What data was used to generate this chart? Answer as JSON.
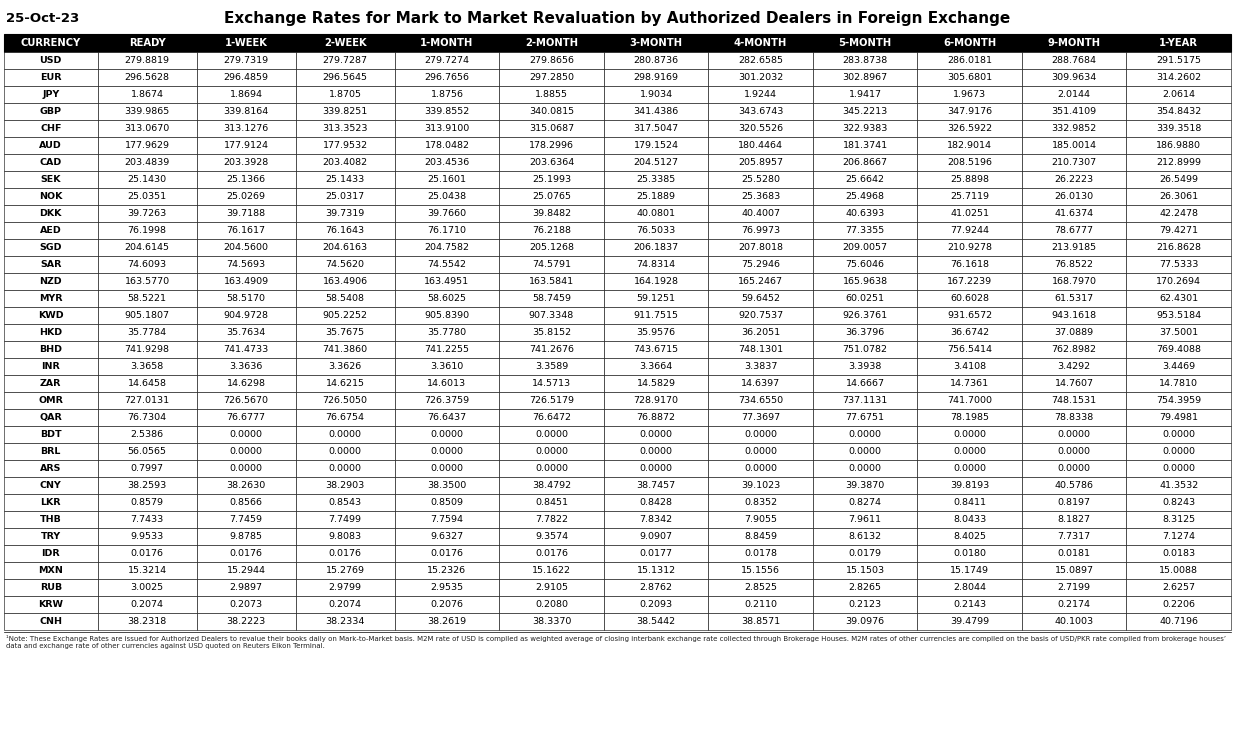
{
  "title": "Exchange Rates for Mark to Market Revaluation by Authorized Dealers in Foreign Exchange",
  "date": "25-Oct-23",
  "footnote": "¹Note: These Exchange Rates are issued for Authorized Dealers to revalue their books daily on Mark-to-Market basis. M2M rate of USD is compiled as weighted average of closing interbank exchange rate collected through Brokerage Houses. M2M rates of other currencies are compiled on the basis of USD/PKR rate compiled from brokerage houses’ data and exchange rate of other currencies against USD quoted on Reuters Eikon Terminal.",
  "columns": [
    "CURRENCY",
    "READY",
    "1-WEEK",
    "2-WEEK",
    "1-MONTH",
    "2-MONTH",
    "3-MONTH",
    "4-MONTH",
    "5-MONTH",
    "6-MONTH",
    "9-MONTH",
    "1-YEAR"
  ],
  "rows": [
    [
      "USD",
      "279.8819",
      "279.7319",
      "279.7287",
      "279.7274",
      "279.8656",
      "280.8736",
      "282.6585",
      "283.8738",
      "286.0181",
      "288.7684",
      "291.5175"
    ],
    [
      "EUR",
      "296.5628",
      "296.4859",
      "296.5645",
      "296.7656",
      "297.2850",
      "298.9169",
      "301.2032",
      "302.8967",
      "305.6801",
      "309.9634",
      "314.2602"
    ],
    [
      "JPY",
      "1.8674",
      "1.8694",
      "1.8705",
      "1.8756",
      "1.8855",
      "1.9034",
      "1.9244",
      "1.9417",
      "1.9673",
      "2.0144",
      "2.0614"
    ],
    [
      "GBP",
      "339.9865",
      "339.8164",
      "339.8251",
      "339.8552",
      "340.0815",
      "341.4386",
      "343.6743",
      "345.2213",
      "347.9176",
      "351.4109",
      "354.8432"
    ],
    [
      "CHF",
      "313.0670",
      "313.1276",
      "313.3523",
      "313.9100",
      "315.0687",
      "317.5047",
      "320.5526",
      "322.9383",
      "326.5922",
      "332.9852",
      "339.3518"
    ],
    [
      "AUD",
      "177.9629",
      "177.9124",
      "177.9532",
      "178.0482",
      "178.2996",
      "179.1524",
      "180.4464",
      "181.3741",
      "182.9014",
      "185.0014",
      "186.9880"
    ],
    [
      "CAD",
      "203.4839",
      "203.3928",
      "203.4082",
      "203.4536",
      "203.6364",
      "204.5127",
      "205.8957",
      "206.8667",
      "208.5196",
      "210.7307",
      "212.8999"
    ],
    [
      "SEK",
      "25.1430",
      "25.1366",
      "25.1433",
      "25.1601",
      "25.1993",
      "25.3385",
      "25.5280",
      "25.6642",
      "25.8898",
      "26.2223",
      "26.5499"
    ],
    [
      "NOK",
      "25.0351",
      "25.0269",
      "25.0317",
      "25.0438",
      "25.0765",
      "25.1889",
      "25.3683",
      "25.4968",
      "25.7119",
      "26.0130",
      "26.3061"
    ],
    [
      "DKK",
      "39.7263",
      "39.7188",
      "39.7319",
      "39.7660",
      "39.8482",
      "40.0801",
      "40.4007",
      "40.6393",
      "41.0251",
      "41.6374",
      "42.2478"
    ],
    [
      "AED",
      "76.1998",
      "76.1617",
      "76.1643",
      "76.1710",
      "76.2188",
      "76.5033",
      "76.9973",
      "77.3355",
      "77.9244",
      "78.6777",
      "79.4271"
    ],
    [
      "SGD",
      "204.6145",
      "204.5600",
      "204.6163",
      "204.7582",
      "205.1268",
      "206.1837",
      "207.8018",
      "209.0057",
      "210.9278",
      "213.9185",
      "216.8628"
    ],
    [
      "SAR",
      "74.6093",
      "74.5693",
      "74.5620",
      "74.5542",
      "74.5791",
      "74.8314",
      "75.2946",
      "75.6046",
      "76.1618",
      "76.8522",
      "77.5333"
    ],
    [
      "NZD",
      "163.5770",
      "163.4909",
      "163.4906",
      "163.4951",
      "163.5841",
      "164.1928",
      "165.2467",
      "165.9638",
      "167.2239",
      "168.7970",
      "170.2694"
    ],
    [
      "MYR",
      "58.5221",
      "58.5170",
      "58.5408",
      "58.6025",
      "58.7459",
      "59.1251",
      "59.6452",
      "60.0251",
      "60.6028",
      "61.5317",
      "62.4301"
    ],
    [
      "KWD",
      "905.1807",
      "904.9728",
      "905.2252",
      "905.8390",
      "907.3348",
      "911.7515",
      "920.7537",
      "926.3761",
      "931.6572",
      "943.1618",
      "953.5184"
    ],
    [
      "HKD",
      "35.7784",
      "35.7634",
      "35.7675",
      "35.7780",
      "35.8152",
      "35.9576",
      "36.2051",
      "36.3796",
      "36.6742",
      "37.0889",
      "37.5001"
    ],
    [
      "BHD",
      "741.9298",
      "741.4733",
      "741.3860",
      "741.2255",
      "741.2676",
      "743.6715",
      "748.1301",
      "751.0782",
      "756.5414",
      "762.8982",
      "769.4088"
    ],
    [
      "INR",
      "3.3658",
      "3.3636",
      "3.3626",
      "3.3610",
      "3.3589",
      "3.3664",
      "3.3837",
      "3.3938",
      "3.4108",
      "3.4292",
      "3.4469"
    ],
    [
      "ZAR",
      "14.6458",
      "14.6298",
      "14.6215",
      "14.6013",
      "14.5713",
      "14.5829",
      "14.6397",
      "14.6667",
      "14.7361",
      "14.7607",
      "14.7810"
    ],
    [
      "OMR",
      "727.0131",
      "726.5670",
      "726.5050",
      "726.3759",
      "726.5179",
      "728.9170",
      "734.6550",
      "737.1131",
      "741.7000",
      "748.1531",
      "754.3959"
    ],
    [
      "QAR",
      "76.7304",
      "76.6777",
      "76.6754",
      "76.6437",
      "76.6472",
      "76.8872",
      "77.3697",
      "77.6751",
      "78.1985",
      "78.8338",
      "79.4981"
    ],
    [
      "BDT",
      "2.5386",
      "0.0000",
      "0.0000",
      "0.0000",
      "0.0000",
      "0.0000",
      "0.0000",
      "0.0000",
      "0.0000",
      "0.0000",
      "0.0000"
    ],
    [
      "BRL",
      "56.0565",
      "0.0000",
      "0.0000",
      "0.0000",
      "0.0000",
      "0.0000",
      "0.0000",
      "0.0000",
      "0.0000",
      "0.0000",
      "0.0000"
    ],
    [
      "ARS",
      "0.7997",
      "0.0000",
      "0.0000",
      "0.0000",
      "0.0000",
      "0.0000",
      "0.0000",
      "0.0000",
      "0.0000",
      "0.0000",
      "0.0000"
    ],
    [
      "CNY",
      "38.2593",
      "38.2630",
      "38.2903",
      "38.3500",
      "38.4792",
      "38.7457",
      "39.1023",
      "39.3870",
      "39.8193",
      "40.5786",
      "41.3532"
    ],
    [
      "LKR",
      "0.8579",
      "0.8566",
      "0.8543",
      "0.8509",
      "0.8451",
      "0.8428",
      "0.8352",
      "0.8274",
      "0.8411",
      "0.8197",
      "0.8243"
    ],
    [
      "THB",
      "7.7433",
      "7.7459",
      "7.7499",
      "7.7594",
      "7.7822",
      "7.8342",
      "7.9055",
      "7.9611",
      "8.0433",
      "8.1827",
      "8.3125"
    ],
    [
      "TRY",
      "9.9533",
      "9.8785",
      "9.8083",
      "9.6327",
      "9.3574",
      "9.0907",
      "8.8459",
      "8.6132",
      "8.4025",
      "7.7317",
      "7.1274"
    ],
    [
      "IDR",
      "0.0176",
      "0.0176",
      "0.0176",
      "0.0176",
      "0.0176",
      "0.0177",
      "0.0178",
      "0.0179",
      "0.0180",
      "0.0181",
      "0.0183"
    ],
    [
      "MXN",
      "15.3214",
      "15.2944",
      "15.2769",
      "15.2326",
      "15.1622",
      "15.1312",
      "15.1556",
      "15.1503",
      "15.1749",
      "15.0897",
      "15.0088"
    ],
    [
      "RUB",
      "3.0025",
      "2.9897",
      "2.9799",
      "2.9535",
      "2.9105",
      "2.8762",
      "2.8525",
      "2.8265",
      "2.8044",
      "2.7199",
      "2.6257"
    ],
    [
      "KRW",
      "0.2074",
      "0.2073",
      "0.2074",
      "0.2076",
      "0.2080",
      "0.2093",
      "0.2110",
      "0.2123",
      "0.2143",
      "0.2174",
      "0.2206"
    ],
    [
      "CNH",
      "38.2318",
      "38.2223",
      "38.2334",
      "38.2619",
      "38.3370",
      "38.5442",
      "38.8571",
      "39.0976",
      "39.4799",
      "40.1003",
      "40.7196"
    ]
  ],
  "header_bg": "#000000",
  "header_fg": "#ffffff",
  "row_bg": "#ffffff",
  "border_color": "#000000",
  "title_color": "#000000",
  "date_color": "#000000",
  "fig_width": 12.35,
  "fig_height": 7.54,
  "dpi": 100
}
